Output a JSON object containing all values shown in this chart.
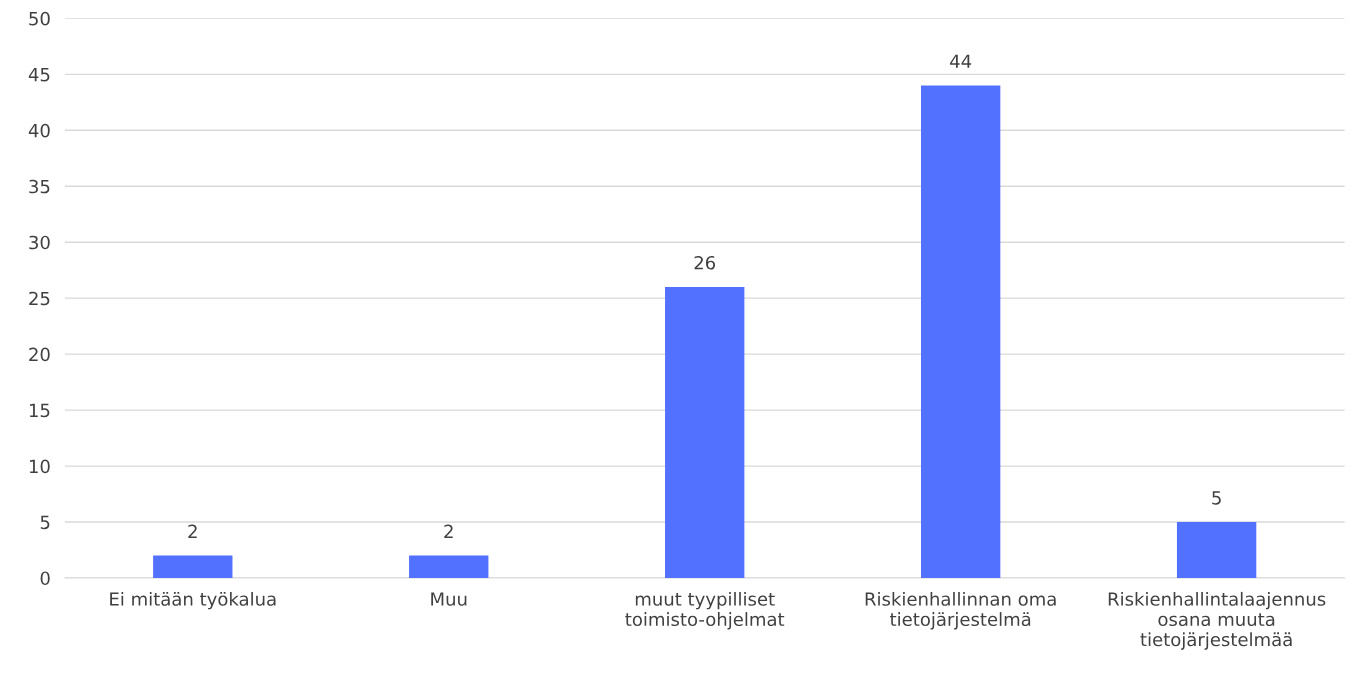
{
  "chart_data": {
    "type": "bar",
    "categories": [
      "Ei mitään työkalua",
      "Muu",
      "muut tyypilliset\ntoimisto-ohjelmat",
      "Riskienhallinnan oma\ntietojärjestelmä",
      "Riskienhallintalaajennus\nosana muuta\ntietojärjestelmää"
    ],
    "values": [
      2,
      2,
      26,
      44,
      5
    ],
    "color": "#5271ff",
    "ylim": [
      0,
      50
    ],
    "yticks": [
      0,
      5,
      10,
      15,
      20,
      25,
      30,
      35,
      40,
      45,
      50
    ],
    "grid": "y",
    "data_labels": true
  }
}
